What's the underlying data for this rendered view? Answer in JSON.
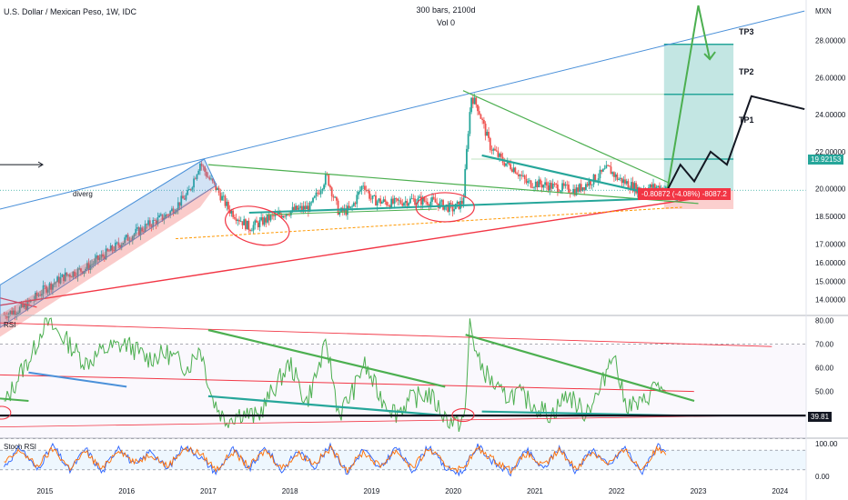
{
  "header": {
    "symbol": "U.S. Dollar / Mexican Peso, 1W, IDC",
    "bars": "300 bars, 2100d",
    "vol": "Vol 0"
  },
  "price_scale": {
    "currency": "MXN",
    "last_price": "19.92153",
    "last_price_color": "#26a69a"
  },
  "change_badge": {
    "text": "-0.80872 (-4.08%) -8087.2",
    "color": "#f23645"
  },
  "annotations": {
    "tp1": "TP1",
    "tp2": "TP2",
    "tp3": "TP3",
    "diverg": "diverg"
  },
  "rsi_panel": {
    "title": "RSI",
    "level_label": "39.81",
    "level_color": "#131722"
  },
  "stoch_panel": {
    "title": "Stoch RSI"
  },
  "chart_data": [
    {
      "type": "candlestick",
      "panel": "price",
      "title": "U.S. Dollar / Mexican Peso, 1W, IDC",
      "ylabel": "MXN",
      "ylim": [
        13.3,
        30.0
      ],
      "y_ticks": [
        14.0,
        15.0,
        16.0,
        17.0,
        18.5,
        20.0,
        22.0,
        24.0,
        26.0,
        28.0
      ],
      "y_tick_labels": [
        "14.00000",
        "15.00000",
        "16.00000",
        "17.00000",
        "18.50000",
        "20.00000",
        "22.00000",
        "24.00000",
        "26.00000",
        "28.00000"
      ],
      "x_ticks": [
        2015,
        2016,
        2017,
        2018,
        2019,
        2020,
        2021,
        2022,
        2023,
        2024
      ],
      "xlim": [
        2014.45,
        2024.32
      ],
      "grid": false,
      "series": [
        {
          "x": [
            2014.5,
            2014.75,
            2015.0,
            2015.25,
            2015.5,
            2015.75,
            2016.0,
            2016.25,
            2016.5,
            2016.75,
            2016.9,
            2017.0,
            2017.1,
            2017.25,
            2017.5,
            2017.75,
            2018.0,
            2018.25,
            2018.45,
            2018.6,
            2018.75,
            2018.9,
            2019.0,
            2019.25,
            2019.5,
            2019.75,
            2020.0,
            2020.12,
            2020.18,
            2020.22,
            2020.3,
            2020.45,
            2020.6,
            2020.75,
            2020.9,
            2021.0,
            2021.25,
            2021.5,
            2021.75,
            2021.9,
            2022.0,
            2022.25,
            2022.5,
            2022.62
          ],
          "y": [
            13.2,
            13.6,
            14.6,
            15.3,
            15.7,
            16.5,
            17.3,
            18.0,
            18.6,
            19.7,
            21.4,
            20.6,
            20.0,
            18.9,
            17.9,
            18.4,
            18.8,
            19.0,
            20.7,
            18.7,
            18.9,
            20.3,
            19.4,
            19.2,
            19.4,
            19.3,
            18.9,
            19.3,
            23.0,
            25.0,
            24.4,
            22.3,
            21.5,
            21.1,
            20.3,
            20.3,
            20.1,
            19.9,
            20.6,
            21.1,
            20.6,
            20.0,
            20.1,
            19.92
          ]
        }
      ],
      "overlays": {
        "targets": [
          "TP1",
          "TP2",
          "TP3"
        ],
        "projection": [
          [
            2022.62,
            19.92
          ],
          [
            2022.78,
            21.3
          ],
          [
            2022.95,
            20.4
          ],
          [
            2023.15,
            22.0
          ],
          [
            2023.35,
            21.3
          ],
          [
            2023.65,
            25.0
          ],
          [
            2024.3,
            24.3
          ]
        ]
      }
    },
    {
      "type": "line",
      "panel": "rsi",
      "title": "RSI",
      "ylim": [
        31,
        81
      ],
      "y_ticks": [
        40,
        50,
        60,
        70,
        80
      ],
      "y_tick_labels": [
        "40.00",
        "50.00",
        "60.00",
        "70.00",
        "80.00"
      ],
      "x_ticks": [
        2015,
        2016,
        2017,
        2018,
        2019,
        2020,
        2021,
        2022,
        2023,
        2024
      ],
      "xlim": [
        2014.45,
        2024.32
      ],
      "series": [
        {
          "name": "RSI",
          "x": [
            2014.5,
            2014.7,
            2014.85,
            2015.0,
            2015.25,
            2015.5,
            2015.75,
            2016.0,
            2016.25,
            2016.5,
            2016.75,
            2016.9,
            2017.05,
            2017.2,
            2017.4,
            2017.6,
            2017.8,
            2018.0,
            2018.2,
            2018.45,
            2018.6,
            2018.8,
            2018.9,
            2019.1,
            2019.3,
            2019.5,
            2019.7,
            2019.9,
            2020.05,
            2020.15,
            2020.2,
            2020.3,
            2020.45,
            2020.6,
            2020.8,
            2021.0,
            2021.2,
            2021.4,
            2021.6,
            2021.8,
            2021.95,
            2022.1,
            2022.3,
            2022.5,
            2022.62
          ],
          "y": [
            44,
            58,
            66,
            80,
            72,
            62,
            68,
            70,
            64,
            66,
            60,
            69,
            47,
            38,
            41,
            39,
            51,
            62,
            45,
            70,
            40,
            52,
            62,
            48,
            41,
            47,
            49,
            39,
            36,
            40,
            80,
            63,
            55,
            48,
            49,
            44,
            40,
            49,
            41,
            50,
            68,
            45,
            44,
            54,
            44.8
          ]
        }
      ],
      "level": 39.81
    },
    {
      "type": "line",
      "panel": "stoch_rsi",
      "title": "Stoch RSI",
      "ylim": [
        0,
        100
      ],
      "y_ticks": [
        0,
        100
      ],
      "y_tick_labels": [
        "0.00",
        "100.00"
      ],
      "x_ticks": [
        2015,
        2016,
        2017,
        2018,
        2019,
        2020,
        2021,
        2022,
        2023,
        2024
      ],
      "xlim": [
        2014.45,
        2024.32
      ],
      "series": [
        {
          "name": "K",
          "x": [
            2014.5,
            2014.7,
            2014.9,
            2015.1,
            2015.3,
            2015.5,
            2015.7,
            2015.9,
            2016.1,
            2016.3,
            2016.5,
            2016.7,
            2016.9,
            2017.1,
            2017.3,
            2017.5,
            2017.7,
            2017.9,
            2018.1,
            2018.3,
            2018.5,
            2018.7,
            2018.9,
            2019.1,
            2019.3,
            2019.5,
            2019.7,
            2019.9,
            2020.1,
            2020.3,
            2020.5,
            2020.7,
            2020.9,
            2021.1,
            2021.3,
            2021.5,
            2021.7,
            2021.9,
            2022.1,
            2022.3,
            2022.5,
            2022.62
          ],
          "y": [
            30,
            90,
            20,
            95,
            15,
            85,
            10,
            95,
            30,
            80,
            20,
            95,
            60,
            10,
            85,
            20,
            90,
            15,
            80,
            30,
            95,
            10,
            85,
            20,
            90,
            15,
            95,
            25,
            10,
            95,
            40,
            10,
            80,
            20,
            90,
            15,
            85,
            30,
            90,
            10,
            95,
            60
          ]
        },
        {
          "name": "D",
          "x": [
            2014.5,
            2014.7,
            2014.9,
            2015.1,
            2015.3,
            2015.5,
            2015.7,
            2015.9,
            2016.1,
            2016.3,
            2016.5,
            2016.7,
            2016.9,
            2017.1,
            2017.3,
            2017.5,
            2017.7,
            2017.9,
            2018.1,
            2018.3,
            2018.5,
            2018.7,
            2018.9,
            2019.1,
            2019.3,
            2019.5,
            2019.7,
            2019.9,
            2020.1,
            2020.3,
            2020.5,
            2020.7,
            2020.9,
            2021.1,
            2021.3,
            2021.5,
            2021.7,
            2021.9,
            2022.1,
            2022.3,
            2022.5,
            2022.62
          ],
          "y": [
            40,
            80,
            30,
            85,
            25,
            75,
            20,
            85,
            40,
            70,
            30,
            85,
            70,
            20,
            75,
            30,
            80,
            25,
            70,
            40,
            85,
            20,
            75,
            30,
            80,
            25,
            85,
            35,
            20,
            85,
            50,
            20,
            70,
            30,
            80,
            25,
            75,
            40,
            80,
            20,
            85,
            75
          ]
        }
      ]
    }
  ]
}
